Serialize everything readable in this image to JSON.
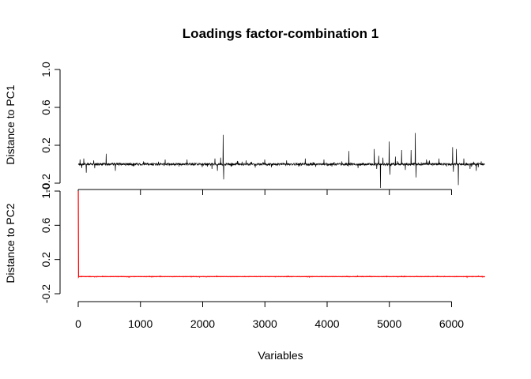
{
  "chart_data": {
    "type": "line",
    "title": "Loadings factor-combination 1",
    "xlabel": "Variables",
    "x_range": [
      1,
      6540
    ],
    "xlim": [
      0,
      6540
    ],
    "x_ticks": [
      0,
      1000,
      2000,
      3000,
      4000,
      5000,
      6000
    ],
    "x_tick_labels": [
      "0",
      "1000",
      "2000",
      "3000",
      "4000",
      "5000",
      "6000"
    ],
    "grid": false,
    "legend": "none",
    "panels": [
      {
        "name": "PC1",
        "ylabel": "Distance to PC1",
        "ylim": [
          -0.2,
          1.0
        ],
        "y_ticks": [
          -0.2,
          0.2,
          0.6,
          1.0
        ],
        "y_tick_labels": [
          "-0.2",
          "0.2",
          "0.6",
          "1.0"
        ],
        "color": "#000000",
        "baseline": 0.0,
        "noise_amplitude": 0.012,
        "spikes": [
          {
            "x": 30,
            "y": 0.05
          },
          {
            "x": 60,
            "y": -0.04
          },
          {
            "x": 90,
            "y": 0.06
          },
          {
            "x": 130,
            "y": -0.09
          },
          {
            "x": 250,
            "y": 0.04
          },
          {
            "x": 450,
            "y": 0.11
          },
          {
            "x": 600,
            "y": -0.07
          },
          {
            "x": 1050,
            "y": 0.03
          },
          {
            "x": 1400,
            "y": 0.05
          },
          {
            "x": 1750,
            "y": 0.05
          },
          {
            "x": 2150,
            "y": -0.05
          },
          {
            "x": 2200,
            "y": 0.06
          },
          {
            "x": 2240,
            "y": -0.07
          },
          {
            "x": 2290,
            "y": 0.07
          },
          {
            "x": 2330,
            "y": 0.31
          },
          {
            "x": 2340,
            "y": -0.16
          },
          {
            "x": 2700,
            "y": 0.04
          },
          {
            "x": 3000,
            "y": 0.05
          },
          {
            "x": 3350,
            "y": 0.04
          },
          {
            "x": 3650,
            "y": 0.06
          },
          {
            "x": 3950,
            "y": 0.05
          },
          {
            "x": 4350,
            "y": 0.14
          },
          {
            "x": 4500,
            "y": -0.04
          },
          {
            "x": 4760,
            "y": 0.16
          },
          {
            "x": 4800,
            "y": -0.05
          },
          {
            "x": 4830,
            "y": 0.09
          },
          {
            "x": 4860,
            "y": -0.25
          },
          {
            "x": 4900,
            "y": 0.07
          },
          {
            "x": 5000,
            "y": 0.24
          },
          {
            "x": 5010,
            "y": -0.11
          },
          {
            "x": 5100,
            "y": 0.08
          },
          {
            "x": 5200,
            "y": 0.15
          },
          {
            "x": 5260,
            "y": -0.06
          },
          {
            "x": 5350,
            "y": 0.15
          },
          {
            "x": 5420,
            "y": 0.33
          },
          {
            "x": 5430,
            "y": -0.14
          },
          {
            "x": 5600,
            "y": 0.05
          },
          {
            "x": 5800,
            "y": 0.06
          },
          {
            "x": 6020,
            "y": 0.18
          },
          {
            "x": 6030,
            "y": -0.08
          },
          {
            "x": 6080,
            "y": 0.16
          },
          {
            "x": 6110,
            "y": -0.22
          },
          {
            "x": 6200,
            "y": 0.06
          },
          {
            "x": 6300,
            "y": -0.05
          },
          {
            "x": 6400,
            "y": -0.07
          },
          {
            "x": 6480,
            "y": 0.03
          }
        ]
      },
      {
        "name": "PC2",
        "ylabel": "Distance to PC2",
        "ylim": [
          -0.2,
          1.0
        ],
        "y_ticks": [
          -0.2,
          0.2,
          0.6,
          1.0
        ],
        "y_tick_labels": [
          "-0.2",
          "0.2",
          "0.6",
          "1.0"
        ],
        "color": "#ff0000",
        "baseline": 0.0,
        "noise_amplitude": 0.0015,
        "spikes": [
          {
            "x": 1,
            "y": 1.0
          }
        ]
      }
    ]
  }
}
